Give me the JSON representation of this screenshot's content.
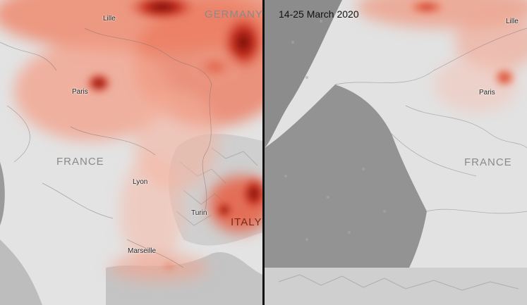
{
  "left_map": {
    "countries": {
      "germany": "GERMANY",
      "france": "FRANCE",
      "italy": "ITALY"
    },
    "cities": {
      "lille": "Lille",
      "paris": "Paris",
      "lyon": "Lyon",
      "turin": "Turin",
      "marseille": "Marseille"
    }
  },
  "right_map": {
    "date_range": "14-25 March 2020",
    "countries": {
      "france": "FRANCE"
    },
    "cities": {
      "lille": "Lille",
      "paris": "Paris"
    }
  },
  "colors": {
    "terrain_light": "#e6e6e6",
    "terrain_shadow": "#b9b9b9",
    "sea": "#8f8f8f",
    "no2_low": "#f4b7a4",
    "no2_mid": "#e8553a",
    "no2_high": "#7a0f0b"
  }
}
